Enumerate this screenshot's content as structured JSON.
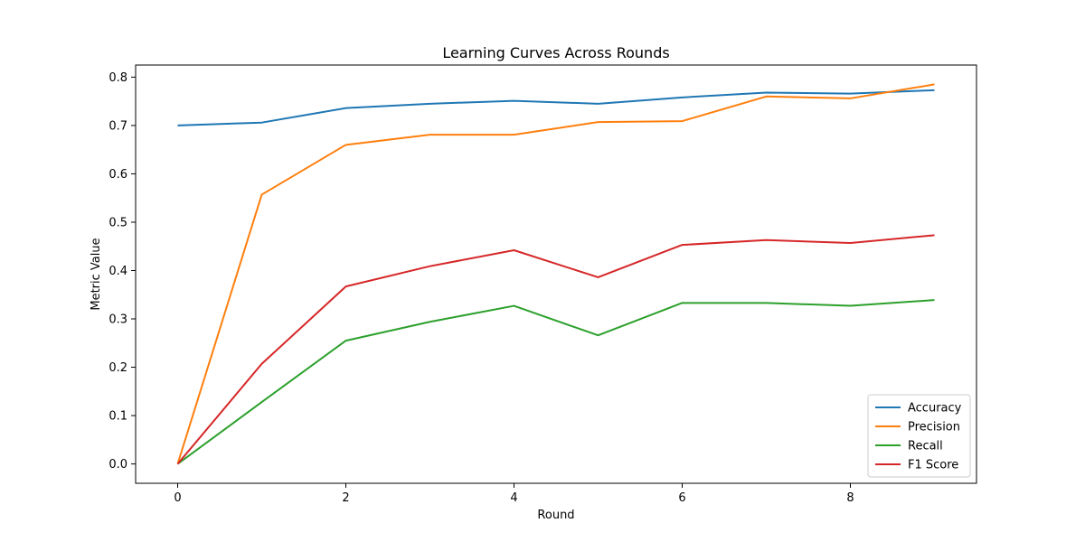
{
  "chart_data": {
    "type": "line",
    "title": "Learning Curves Across Rounds",
    "xlabel": "Round",
    "ylabel": "Metric Value",
    "x": [
      0,
      1,
      2,
      3,
      4,
      5,
      6,
      7,
      8,
      9
    ],
    "xlim": [
      -0.5,
      9.5
    ],
    "ylim": [
      -0.04,
      0.825
    ],
    "xticks": [
      0,
      2,
      4,
      6,
      8
    ],
    "yticks": [
      0.0,
      0.1,
      0.2,
      0.3,
      0.4,
      0.5,
      0.6,
      0.7,
      0.8
    ],
    "grid": false,
    "legend_position": "lower right",
    "series": [
      {
        "name": "Accuracy",
        "color": "#1f77b4",
        "values": [
          0.7,
          0.706,
          0.736,
          0.745,
          0.751,
          0.745,
          0.758,
          0.768,
          0.766,
          0.773
        ]
      },
      {
        "name": "Precision",
        "color": "#ff7f0e",
        "values": [
          0.0,
          0.557,
          0.66,
          0.681,
          0.681,
          0.707,
          0.709,
          0.76,
          0.756,
          0.785
        ]
      },
      {
        "name": "Recall",
        "color": "#2ca02c",
        "values": [
          0.0,
          0.128,
          0.255,
          0.294,
          0.327,
          0.266,
          0.333,
          0.333,
          0.327,
          0.339
        ]
      },
      {
        "name": "F1 Score",
        "color": "#d62728",
        "values": [
          0.0,
          0.207,
          0.367,
          0.409,
          0.442,
          0.386,
          0.453,
          0.463,
          0.457,
          0.473
        ]
      }
    ]
  }
}
